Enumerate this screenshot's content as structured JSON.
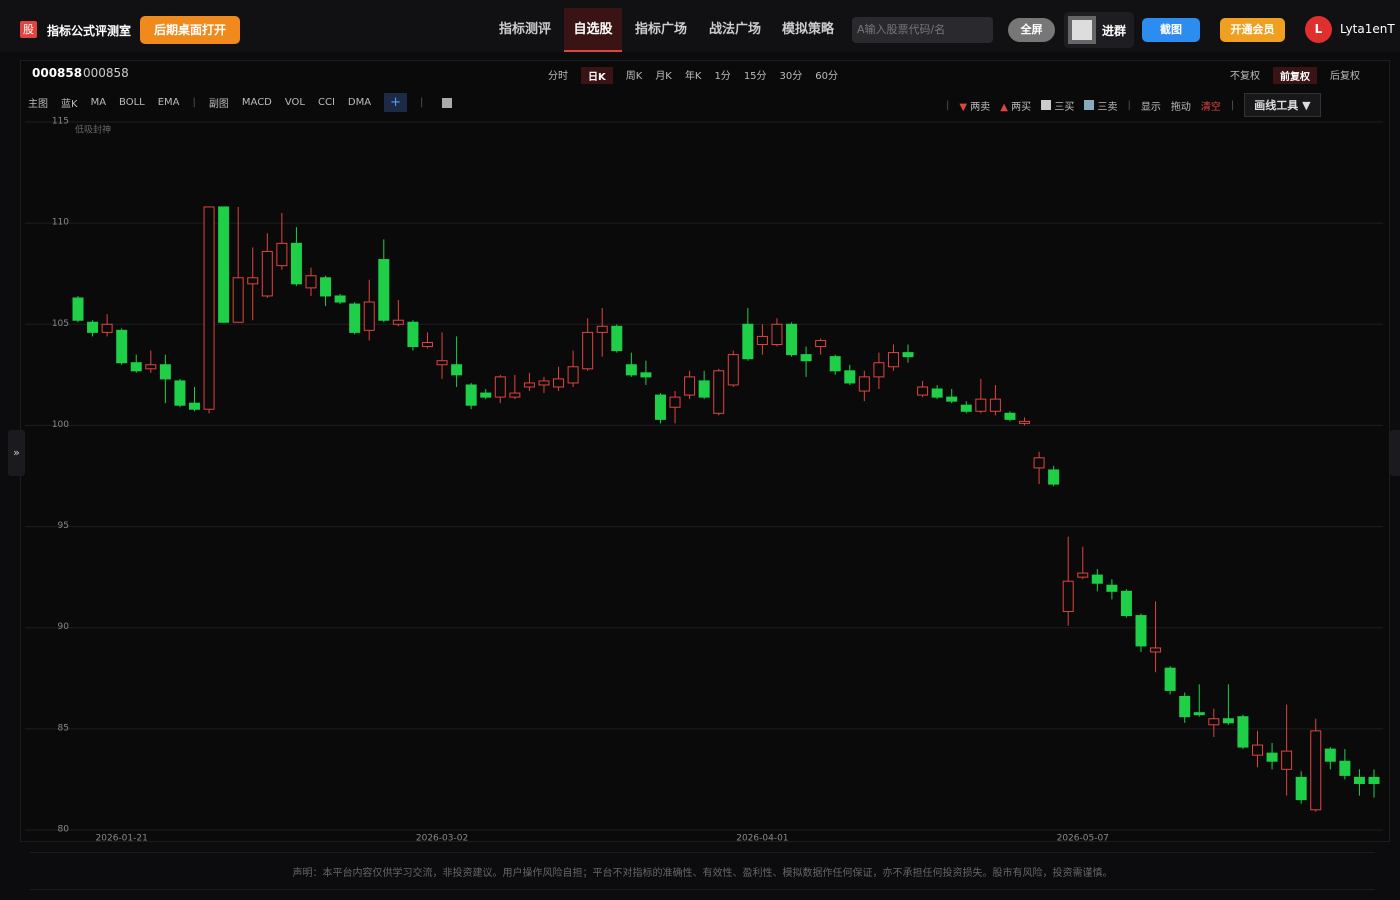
{
  "header": {
    "logo": "股",
    "brand": "指标公式评测室",
    "desktop_button": "后期桌面打开",
    "nav": [
      "指标测评",
      "自选股",
      "指标广场",
      "战法广场",
      "模拟策略"
    ],
    "search_placeholder": "A输入股票代码/名",
    "fullscreen": "全屏",
    "group": "进群",
    "screenshot": "截图",
    "vip": "开通会员",
    "avatar": "L",
    "user": "Lyta1enT"
  },
  "panel": {
    "code": "000858",
    "name": "000858",
    "periods": [
      "分时",
      "日K",
      "周K",
      "月K",
      "年K",
      "1分",
      "15分",
      "30分",
      "60分"
    ],
    "adjust": [
      "不复权",
      "前复权",
      "后复权"
    ],
    "main_label": "主图",
    "main_items": [
      "蓝K",
      "MA",
      "BOLL",
      "EMA"
    ],
    "sub_label": "副图",
    "sub_items": [
      "MACD",
      "VOL",
      "CCI",
      "DMA"
    ],
    "add": "+",
    "tools": [
      "两卖",
      "两买",
      "三买",
      "三卖",
      "显示",
      "拖动",
      "清空"
    ],
    "draw_tool": "画线工具 ▼",
    "side_tab": "»"
  },
  "footer": {
    "disclaimer": "声明：本平台内容仅供学习交流，非投资建议。用户操作风险自担；平台不对指标的准确性、有效性、盈利性、模拟数据作任何保证，亦不承担任何投资损失。股市有风险，投资需谨慎。"
  },
  "chart_data": {
    "type": "candlestick",
    "annotation": "低吸封神",
    "up_color": "#e0443e",
    "down_color": "#1fcf48",
    "grid": true,
    "ylim": [
      80,
      115
    ],
    "yticks": [
      80,
      85,
      90,
      95,
      100,
      105,
      110,
      115
    ],
    "categories": [
      null,
      null,
      null,
      "2026-01-21",
      null,
      null,
      null,
      null,
      null,
      null,
      null,
      null,
      null,
      null,
      null,
      null,
      null,
      null,
      null,
      null,
      null,
      null,
      null,
      null,
      null,
      "2026-03-02",
      null,
      null,
      null,
      null,
      null,
      null,
      null,
      null,
      null,
      null,
      null,
      null,
      null,
      null,
      null,
      null,
      null,
      null,
      null,
      null,
      null,
      "2026-04-01",
      null,
      null,
      null,
      null,
      null,
      null,
      null,
      null,
      null,
      null,
      null,
      null,
      null,
      null,
      null,
      null,
      null,
      null,
      null,
      null,
      null,
      "2026-05-07",
      null,
      null,
      null,
      null,
      null,
      null,
      null,
      null,
      null,
      null,
      null,
      null,
      null,
      null,
      null,
      null,
      null,
      null,
      null,
      null
    ],
    "open": [
      106.3,
      105.1,
      104.6,
      104.7,
      103.1,
      102.8,
      103.0,
      102.2,
      101.1,
      100.8,
      110.8,
      105.1,
      107.0,
      106.4,
      107.9,
      109.0,
      106.8,
      107.3,
      106.4,
      106.0,
      104.7,
      108.2,
      105.0,
      105.1,
      103.9,
      103.0,
      103.0,
      102.0,
      101.6,
      101.4,
      101.4,
      101.9,
      102.0,
      101.9,
      102.1,
      102.8,
      104.6,
      104.9,
      103.0,
      102.6,
      101.5,
      100.9,
      101.5,
      102.2,
      100.6,
      102.0,
      105.0,
      104.0,
      104.0,
      105.0,
      103.5,
      103.9,
      103.4,
      102.7,
      101.7,
      102.4,
      102.9,
      103.6,
      101.5,
      101.8,
      101.4,
      101.0,
      100.7,
      100.7,
      100.6,
      100.1,
      97.9,
      97.8,
      90.8,
      92.5,
      92.6,
      92.1,
      91.8,
      90.6,
      88.8,
      88.0,
      86.6,
      85.8,
      85.2,
      85.5,
      85.6,
      83.7,
      83.8,
      83.0,
      82.6,
      81.0,
      84.0,
      83.4,
      82.6,
      82.6
    ],
    "high": [
      106.4,
      105.2,
      105.5,
      104.8,
      103.5,
      103.7,
      103.5,
      102.3,
      101.9,
      110.8,
      110.8,
      110.8,
      108.8,
      109.5,
      110.5,
      109.8,
      107.8,
      107.4,
      106.5,
      106.1,
      107.2,
      109.2,
      106.2,
      105.2,
      104.6,
      104.6,
      104.4,
      102.1,
      101.8,
      102.5,
      102.5,
      102.6,
      102.4,
      102.9,
      103.7,
      105.3,
      105.8,
      105.0,
      103.6,
      103.2,
      101.6,
      101.7,
      102.7,
      102.7,
      102.8,
      103.7,
      105.8,
      105.0,
      105.3,
      105.1,
      103.9,
      104.3,
      103.5,
      103.0,
      102.7,
      103.6,
      104.0,
      104.0,
      102.2,
      102.0,
      101.8,
      101.2,
      102.3,
      102.0,
      100.7,
      100.4,
      98.7,
      98.0,
      94.5,
      94.0,
      92.9,
      92.4,
      91.9,
      90.7,
      91.3,
      88.1,
      86.8,
      87.2,
      86.0,
      87.2,
      85.7,
      84.9,
      84.3,
      86.2,
      82.9,
      85.5,
      84.1,
      84.0,
      83.0,
      83.0
    ],
    "low": [
      105.1,
      104.4,
      104.4,
      103.0,
      102.6,
      102.6,
      101.1,
      100.9,
      100.7,
      100.6,
      105.1,
      105.1,
      105.2,
      106.3,
      107.7,
      106.9,
      106.4,
      105.9,
      106.0,
      104.5,
      104.2,
      105.1,
      104.9,
      103.7,
      103.8,
      102.3,
      101.9,
      100.8,
      101.3,
      101.1,
      101.3,
      101.7,
      101.6,
      101.7,
      101.9,
      102.7,
      103.4,
      103.6,
      102.4,
      102.0,
      100.1,
      100.1,
      101.3,
      101.3,
      100.5,
      101.9,
      103.2,
      103.5,
      103.9,
      103.4,
      102.4,
      103.5,
      102.5,
      102.0,
      101.2,
      101.8,
      102.7,
      103.1,
      101.4,
      101.3,
      101.1,
      100.6,
      100.6,
      100.5,
      100.2,
      100.0,
      97.1,
      97.0,
      90.1,
      92.4,
      91.8,
      91.4,
      90.5,
      88.8,
      87.8,
      86.7,
      85.3,
      85.6,
      84.6,
      85.2,
      84.0,
      83.1,
      83.0,
      81.7,
      81.3,
      80.9,
      83.0,
      82.5,
      81.7,
      81.6
    ],
    "close": [
      105.2,
      104.6,
      105.0,
      103.1,
      102.7,
      103.0,
      102.3,
      101.0,
      100.8,
      110.8,
      105.1,
      107.3,
      107.3,
      108.6,
      109.0,
      107.0,
      107.4,
      106.4,
      106.1,
      104.6,
      106.1,
      105.2,
      105.2,
      103.9,
      104.1,
      103.2,
      102.5,
      101.0,
      101.4,
      102.4,
      101.6,
      102.1,
      102.2,
      102.3,
      102.9,
      104.6,
      104.9,
      103.7,
      102.5,
      102.4,
      100.3,
      101.4,
      102.4,
      101.4,
      102.7,
      103.5,
      103.3,
      104.4,
      105.0,
      103.5,
      103.2,
      104.2,
      102.7,
      102.1,
      102.4,
      103.1,
      103.6,
      103.4,
      101.9,
      101.4,
      101.2,
      100.7,
      101.3,
      101.3,
      100.3,
      100.2,
      98.4,
      97.1,
      92.3,
      92.7,
      92.2,
      91.8,
      90.6,
      89.1,
      89.0,
      86.9,
      85.6,
      85.7,
      85.5,
      85.3,
      84.1,
      84.2,
      83.4,
      83.9,
      81.5,
      84.9,
      83.4,
      82.7,
      82.3,
      82.3
    ]
  }
}
